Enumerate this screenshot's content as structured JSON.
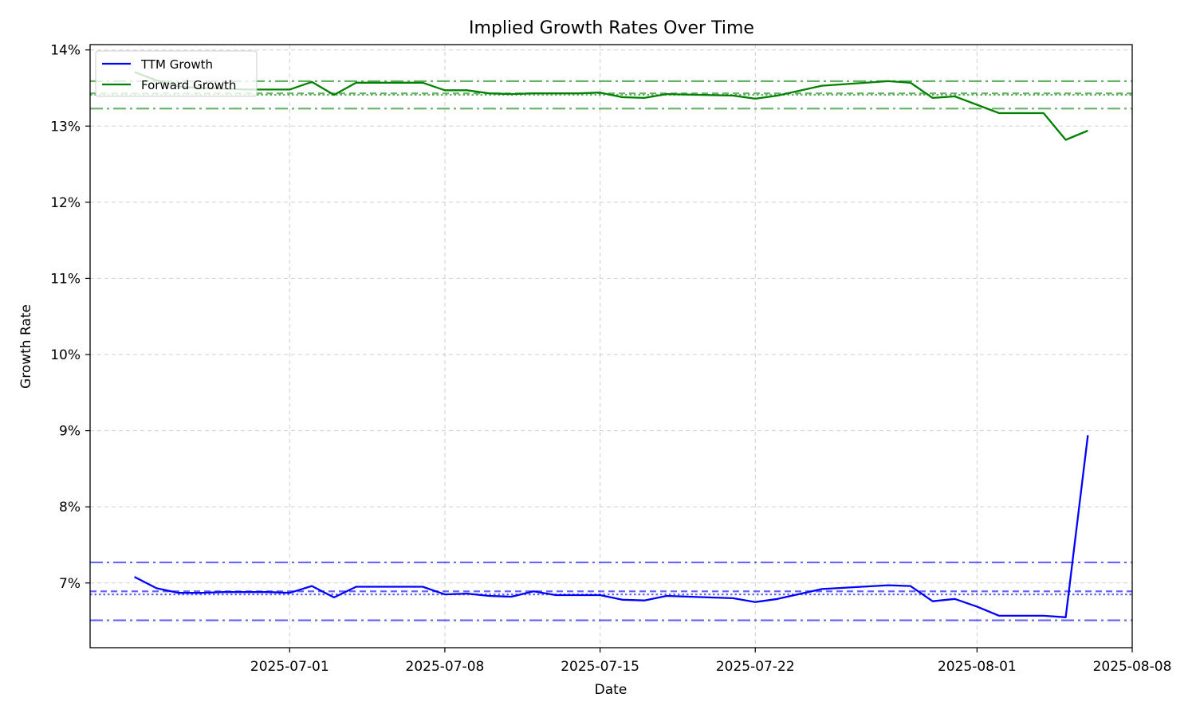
{
  "chart_data": {
    "type": "line",
    "title": "Implied Growth Rates Over Time",
    "xlabel": "Date",
    "ylabel": "Growth Rate",
    "x_ticks": [
      "2025-07-01",
      "2025-07-08",
      "2025-07-15",
      "2025-07-22",
      "2025-08-01",
      "2025-08-08"
    ],
    "x_range": [
      "2025-06-22",
      "2025-08-08"
    ],
    "y_ticks": [
      "7%",
      "8%",
      "9%",
      "10%",
      "11%",
      "12%",
      "13%",
      "14%"
    ],
    "y_tick_values": [
      7,
      8,
      9,
      10,
      11,
      12,
      13,
      14
    ],
    "ylim": [
      6.15,
      14.07
    ],
    "grid": true,
    "legend_position": "top-left",
    "series": [
      {
        "name": "TTM Growth",
        "color": "#0000ff",
        "points": [
          [
            "2025-06-24",
            7.08
          ],
          [
            "2025-06-25",
            6.93
          ],
          [
            "2025-06-26",
            6.87
          ],
          [
            "2025-06-27",
            6.87
          ],
          [
            "2025-06-28",
            6.88
          ],
          [
            "2025-06-29",
            6.88
          ],
          [
            "2025-06-30",
            6.88
          ],
          [
            "2025-07-01",
            6.87
          ],
          [
            "2025-07-02",
            6.96
          ],
          [
            "2025-07-03",
            6.81
          ],
          [
            "2025-07-04",
            6.95
          ],
          [
            "2025-07-05",
            6.95
          ],
          [
            "2025-07-06",
            6.95
          ],
          [
            "2025-07-07",
            6.95
          ],
          [
            "2025-07-08",
            6.85
          ],
          [
            "2025-07-09",
            6.86
          ],
          [
            "2025-07-10",
            6.83
          ],
          [
            "2025-07-11",
            6.82
          ],
          [
            "2025-07-12",
            6.89
          ],
          [
            "2025-07-13",
            6.84
          ],
          [
            "2025-07-14",
            6.84
          ],
          [
            "2025-07-15",
            6.84
          ],
          [
            "2025-07-16",
            6.78
          ],
          [
            "2025-07-17",
            6.77
          ],
          [
            "2025-07-18",
            6.83
          ],
          [
            "2025-07-21",
            6.8
          ],
          [
            "2025-07-22",
            6.75
          ],
          [
            "2025-07-23",
            6.79
          ],
          [
            "2025-07-25",
            6.92
          ],
          [
            "2025-07-28",
            6.97
          ],
          [
            "2025-07-29",
            6.96
          ],
          [
            "2025-07-30",
            6.76
          ],
          [
            "2025-07-31",
            6.79
          ],
          [
            "2025-08-01",
            6.69
          ],
          [
            "2025-08-02",
            6.57
          ],
          [
            "2025-08-04",
            6.57
          ],
          [
            "2025-08-05",
            6.55
          ],
          [
            "2025-08-06",
            8.94
          ]
        ]
      },
      {
        "name": "Forward Growth",
        "color": "#008000",
        "points": [
          [
            "2025-06-24",
            13.71
          ],
          [
            "2025-06-25",
            13.6
          ],
          [
            "2025-06-26",
            13.52
          ],
          [
            "2025-06-27",
            13.5
          ],
          [
            "2025-06-28",
            13.49
          ],
          [
            "2025-06-29",
            13.48
          ],
          [
            "2025-06-30",
            13.48
          ],
          [
            "2025-07-01",
            13.48
          ],
          [
            "2025-07-02",
            13.58
          ],
          [
            "2025-07-03",
            13.41
          ],
          [
            "2025-07-04",
            13.57
          ],
          [
            "2025-07-05",
            13.57
          ],
          [
            "2025-07-06",
            13.57
          ],
          [
            "2025-07-07",
            13.57
          ],
          [
            "2025-07-08",
            13.47
          ],
          [
            "2025-07-09",
            13.47
          ],
          [
            "2025-07-10",
            13.43
          ],
          [
            "2025-07-11",
            13.42
          ],
          [
            "2025-07-12",
            13.43
          ],
          [
            "2025-07-13",
            13.43
          ],
          [
            "2025-07-14",
            13.43
          ],
          [
            "2025-07-15",
            13.44
          ],
          [
            "2025-07-16",
            13.38
          ],
          [
            "2025-07-17",
            13.37
          ],
          [
            "2025-07-18",
            13.42
          ],
          [
            "2025-07-21",
            13.4
          ],
          [
            "2025-07-22",
            13.36
          ],
          [
            "2025-07-23",
            13.4
          ],
          [
            "2025-07-25",
            13.53
          ],
          [
            "2025-07-28",
            13.59
          ],
          [
            "2025-07-29",
            13.57
          ],
          [
            "2025-07-30",
            13.37
          ],
          [
            "2025-07-31",
            13.39
          ],
          [
            "2025-08-01",
            13.28
          ],
          [
            "2025-08-02",
            13.17
          ],
          [
            "2025-08-04",
            13.17
          ],
          [
            "2025-08-05",
            12.82
          ],
          [
            "2025-08-06",
            12.94
          ]
        ]
      }
    ],
    "reference_lines": [
      {
        "series": "TTM Growth",
        "kind": "upper band",
        "style": "dashdot",
        "color": "#0000ff",
        "value": 7.27
      },
      {
        "series": "TTM Growth",
        "kind": "median",
        "style": "dashed",
        "color": "#0000ff",
        "value": 6.89
      },
      {
        "series": "TTM Growth",
        "kind": "mean",
        "style": "dotted",
        "color": "#0000ff",
        "value": 6.85
      },
      {
        "series": "TTM Growth",
        "kind": "lower band",
        "style": "dashdot",
        "color": "#0000ff",
        "value": 6.51
      },
      {
        "series": "Forward Growth",
        "kind": "upper band",
        "style": "dashdot",
        "color": "#008000",
        "value": 13.59
      },
      {
        "series": "Forward Growth",
        "kind": "median",
        "style": "dashed",
        "color": "#008000",
        "value": 13.43
      },
      {
        "series": "Forward Growth",
        "kind": "mean",
        "style": "dotted",
        "color": "#008000",
        "value": 13.41
      },
      {
        "series": "Forward Growth",
        "kind": "lower band",
        "style": "dashdot",
        "color": "#008000",
        "value": 13.23
      }
    ]
  }
}
